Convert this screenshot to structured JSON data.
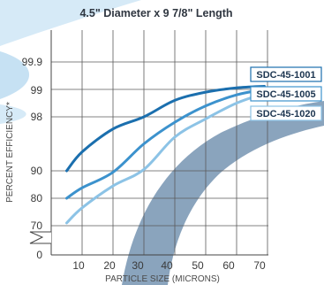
{
  "chart_data": {
    "type": "line",
    "title": "4.5\" Diameter x 9 7/8\" Length",
    "xlabel": "PARTICLE SIZE (MICRONS)",
    "ylabel": "PERCENT EFFICIENCY*",
    "x_ticks": [
      "10",
      "20",
      "30",
      "40",
      "50",
      "60",
      "70"
    ],
    "y_ticks": [
      "0",
      "70",
      "80",
      "90",
      "98",
      "99",
      "99.9"
    ],
    "x_range": [
      0,
      80
    ],
    "y_scale": "segmented (0, 70-90 linear, 98, 99, 99.9)",
    "grid": true,
    "legend_placement": "right, at line ends",
    "series": [
      {
        "name": "SDC-45-1001",
        "color": "#1b6fae",
        "x": [
          5,
          10,
          20,
          30,
          40,
          50,
          60,
          69
        ],
        "y": [
          90,
          92.8,
          96.2,
          98.0,
          98.6,
          98.9,
          99.05,
          99.1
        ]
      },
      {
        "name": "SDC-45-1005",
        "color": "#3c92cd",
        "x": [
          5,
          10,
          20,
          30,
          40,
          50,
          60,
          69
        ],
        "y": [
          80,
          83.8,
          89.5,
          94.0,
          97.2,
          98.4,
          98.8,
          99.0
        ]
      },
      {
        "name": "SDC-45-1020",
        "color": "#8cc3e6",
        "x": [
          5,
          10,
          20,
          30,
          40,
          50,
          60,
          69
        ],
        "y": [
          71,
          76.5,
          84.5,
          90.2,
          95.0,
          97.7,
          98.5,
          98.85
        ]
      }
    ]
  }
}
